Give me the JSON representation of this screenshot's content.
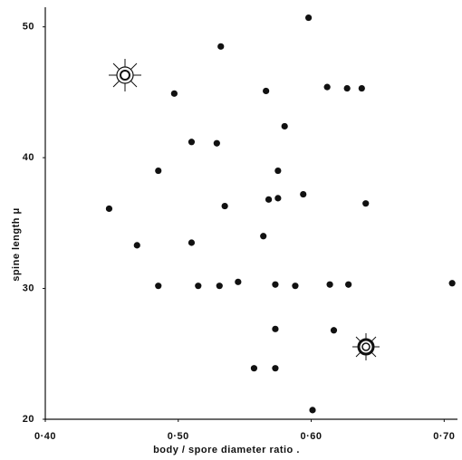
{
  "chart_data": {
    "type": "scatter",
    "xlabel": "body / spore diameter ratio .",
    "ylabel": "spine length  μ",
    "color": "#111111",
    "x": [
      0.598,
      0.532,
      0.497,
      0.566,
      0.612,
      0.627,
      0.638,
      0.58,
      0.51,
      0.529,
      0.485,
      0.575,
      0.448,
      0.535,
      0.568,
      0.575,
      0.594,
      0.641,
      0.469,
      0.51,
      0.564,
      0.485,
      0.515,
      0.531,
      0.545,
      0.573,
      0.588,
      0.614,
      0.628,
      0.706,
      0.573,
      0.617,
      0.557,
      0.573,
      0.601
    ],
    "values": [
      50.7,
      48.5,
      44.9,
      45.1,
      45.4,
      45.3,
      45.3,
      42.4,
      41.2,
      41.1,
      39.0,
      39.0,
      36.1,
      36.3,
      36.8,
      36.9,
      37.2,
      36.5,
      33.3,
      33.5,
      34.0,
      30.2,
      30.2,
      30.2,
      30.5,
      30.3,
      30.2,
      30.3,
      30.3,
      30.4,
      26.9,
      26.8,
      23.9,
      23.9,
      20.7
    ],
    "xlim": [
      0.4,
      0.71
    ],
    "ylim": [
      20,
      51.5
    ],
    "xticks": [
      {
        "value": 0.4,
        "label": "0·40"
      },
      {
        "value": 0.5,
        "label": "0·50"
      },
      {
        "value": 0.6,
        "label": "0·60"
      },
      {
        "value": 0.7,
        "label": "0·70"
      }
    ],
    "yticks": [
      20,
      30,
      40,
      50
    ]
  }
}
